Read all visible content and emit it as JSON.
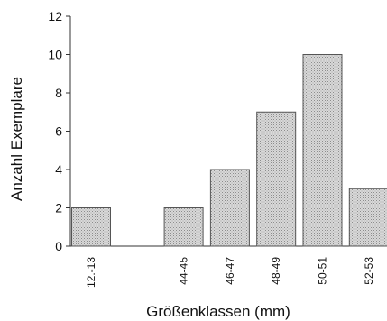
{
  "chart_data": {
    "type": "bar",
    "title": "",
    "xlabel": "Größenklassen (mm)",
    "ylabel": "Anzahl Exemplare",
    "categories": [
      "12.-13",
      "",
      "44-45",
      "46-47",
      "48-49",
      "50-51",
      "52-53"
    ],
    "values": [
      2,
      0,
      2,
      4,
      7,
      10,
      3
    ],
    "ylim": [
      0,
      12
    ],
    "yticks": [
      0,
      2,
      4,
      6,
      8,
      10,
      12
    ],
    "grid": false,
    "legend": "none",
    "bar_fill": "#c9c9c9",
    "bar_stroke": "#555555"
  }
}
